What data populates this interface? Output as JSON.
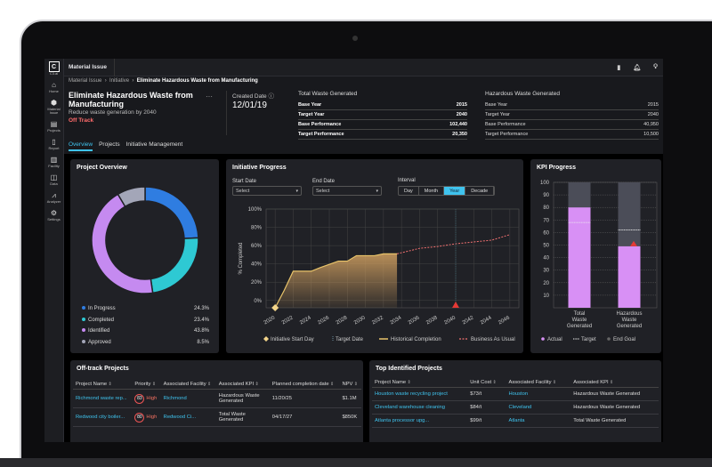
{
  "app": {
    "logo": "C3.ai",
    "title": "Material Issue",
    "top_icons": [
      "bookmark-icon",
      "bell-icon",
      "lightbulb-icon"
    ]
  },
  "sidebar": {
    "items": [
      {
        "label": "Home",
        "icon": "home-icon"
      },
      {
        "label": "Material Issue",
        "icon": "hexagon-icon"
      },
      {
        "label": "Projects",
        "icon": "clipboard-icon"
      },
      {
        "label": "Report",
        "icon": "document-icon"
      },
      {
        "label": "Facility",
        "icon": "building-icon"
      },
      {
        "label": "Data",
        "icon": "database-icon"
      },
      {
        "label": "Analyzer",
        "icon": "chart-icon"
      },
      {
        "label": "Settings",
        "icon": "gear-icon"
      }
    ]
  },
  "breadcrumb": [
    "Material Issue",
    "Initiative",
    "Eliminate Hazardous Waste from Manufacturing"
  ],
  "header": {
    "title": "Eliminate Hazardous Waste from Manufacturing",
    "subtitle": "Reduce waste generation by 2040",
    "status": "Off Track",
    "created_label": "Created Date",
    "created_value": "12/01/19"
  },
  "kpi_tables": [
    {
      "title": "Total Waste Generated",
      "rows": [
        [
          "Base Year",
          "2015"
        ],
        [
          "Target Year",
          "2040"
        ],
        [
          "Base Performance",
          "102,440"
        ],
        [
          "Target Performance",
          "20,350"
        ]
      ]
    },
    {
      "title": "Hazardous Waste Generated",
      "rows": [
        [
          "Base Year",
          "2015"
        ],
        [
          "Target Year",
          "2040"
        ],
        [
          "Base Performance",
          "40,950"
        ],
        [
          "Target Performance",
          "10,500"
        ]
      ]
    }
  ],
  "tabs": [
    "Overview",
    "Projects",
    "Initiative Management"
  ],
  "overview": {
    "title": "Project Overview"
  },
  "progress": {
    "title": "Initiative Progress",
    "start_label": "Start Date",
    "end_label": "End Date",
    "start_value": "Select",
    "end_value": "Select",
    "interval_label": "Interval",
    "intervals": [
      "Day",
      "Month",
      "Year",
      "Decade"
    ],
    "active_interval": "Year"
  },
  "kpi": {
    "title": "KPI Progress"
  },
  "chart_data": [
    {
      "type": "pie",
      "title": "Project Overview",
      "labels": [
        "In Progress",
        "Completed",
        "Identified",
        "Approved"
      ],
      "values": [
        24.3,
        23.4,
        43.8,
        8.5
      ],
      "display": [
        "24.3%",
        "23.4%",
        "43.8%",
        "8.5%"
      ],
      "colors": [
        "#2f7de1",
        "#2ec9d3",
        "#c58af0",
        "#a3a6b8"
      ]
    },
    {
      "type": "line",
      "title": "Initiative Progress",
      "ylabel": "% Completed",
      "ylim": [
        -8,
        100
      ],
      "xlim": [
        2019,
        2047
      ],
      "yticks": [
        "0%",
        "20%",
        "40%",
        "60%",
        "80%",
        "100%"
      ],
      "xticks": [
        "2020",
        "2022",
        "2024",
        "2026",
        "2028",
        "2030",
        "2032",
        "2034",
        "2036",
        "2038",
        "2040",
        "2042",
        "2044",
        "2046"
      ],
      "series": [
        {
          "name": "Historical Completion",
          "color": "#e9c46a",
          "x": [
            2020,
            2021,
            2022,
            2024,
            2025,
            2027,
            2028,
            2029,
            2031,
            2032,
            2033.5
          ],
          "y": [
            -8,
            11,
            32,
            32,
            36,
            43,
            43,
            49,
            49,
            51,
            51
          ]
        },
        {
          "name": "Business As Usual",
          "color": "#f07070",
          "x": [
            2033.5,
            2036,
            2038,
            2040,
            2042,
            2044,
            2046
          ],
          "y": [
            51,
            57,
            59,
            62,
            64,
            66,
            72
          ]
        }
      ],
      "start": {
        "name": "Initiative Start Day",
        "x": 2020
      },
      "target": {
        "name": "Target Date",
        "x": 2040
      },
      "legend": "bottom"
    },
    {
      "type": "bar",
      "title": "KPI Progress",
      "categories": [
        "Total Waste Generated",
        "Hazardous Waste Generated"
      ],
      "actual": [
        80,
        49
      ],
      "target": [
        68,
        62
      ],
      "end_goal": [
        100,
        100
      ],
      "ylim": [
        0,
        100
      ],
      "yticks": [
        10,
        20,
        30,
        40,
        50,
        60,
        70,
        80,
        90,
        100
      ],
      "legend_items": [
        "Actual",
        "Target",
        "End Goal"
      ],
      "colors": {
        "actual": "#d890f5",
        "goal": "#4b4d58"
      },
      "legend": "bottom"
    }
  ],
  "offtrack": {
    "title": "Off-track Projects",
    "columns": [
      "Project Name",
      "Priority",
      "Associated Facility",
      "Associated KPI",
      "Planned completion date",
      "NPV"
    ],
    "rows": [
      {
        "name": "Richmond waste rep...",
        "score": "83",
        "priority": "High",
        "facility": "Richmond",
        "kpi": "Hazardous Waste Generated",
        "date": "11/20/25",
        "npv": "$1.1M"
      },
      {
        "name": "Redwood city boiler...",
        "score": "80",
        "priority": "High",
        "facility": "Redwood Ci...",
        "kpi": "Total Waste Generated",
        "date": "04/17/27",
        "npv": "$850K"
      }
    ]
  },
  "top": {
    "title": "Top Identified Projects",
    "columns": [
      "Project Name",
      "Unit Cost",
      "Associated Facility",
      "Associated KPI"
    ],
    "rows": [
      {
        "name": "Houston waste recycling project",
        "cost": "$73/t",
        "facility": "Houston",
        "kpi": "Hazardous Waste Generated"
      },
      {
        "name": "Cleveland warehouse cleaning",
        "cost": "$84/t",
        "facility": "Cleveland",
        "kpi": "Hazardous Waste Generated"
      },
      {
        "name": "Atlanta processor upg...",
        "cost": "$99/t",
        "facility": "Atlanta",
        "kpi": "Total Waste Generated"
      }
    ]
  }
}
